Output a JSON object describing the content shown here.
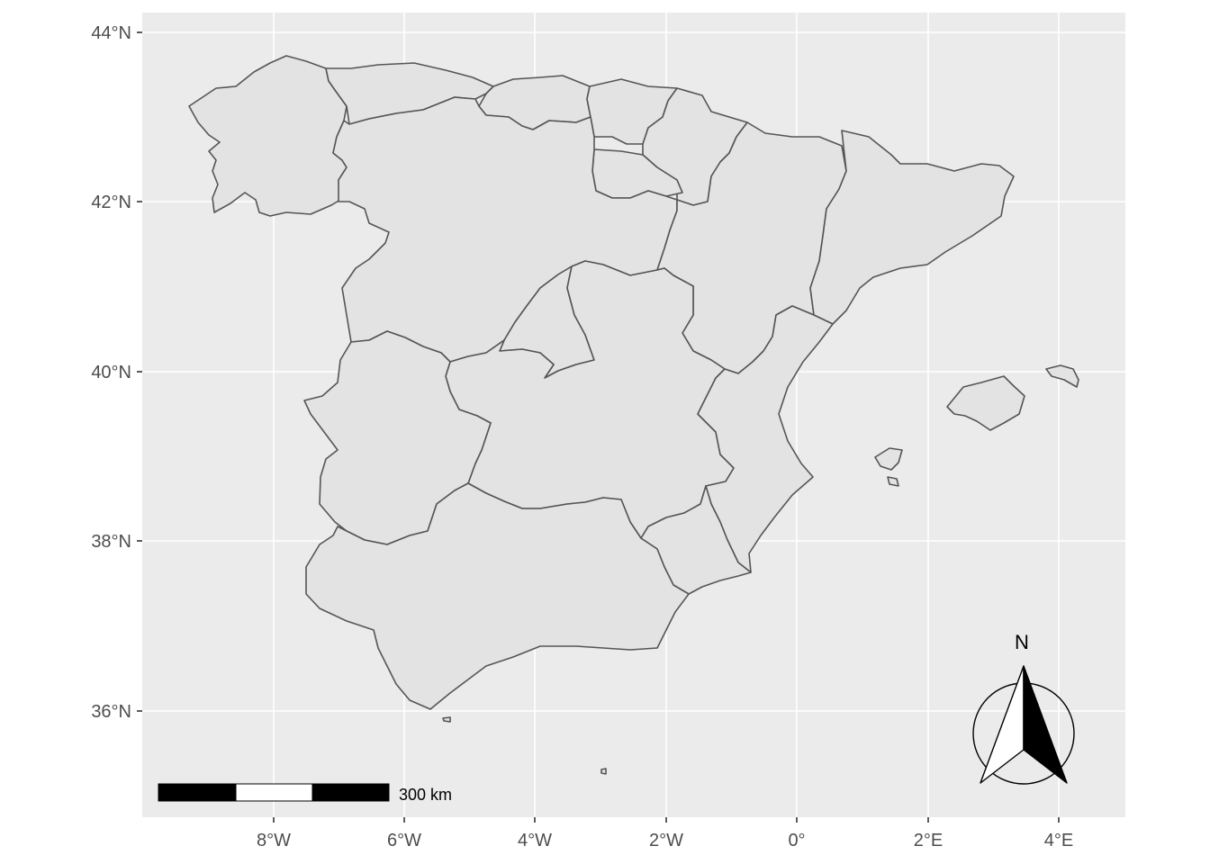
{
  "map": {
    "panel_background": "#ebebeb",
    "region_fill": "#e3e3e3",
    "region_stroke": "#555555",
    "grid_color": "#ffffff",
    "x_ticks": [
      "8°W",
      "6°W",
      "4°W",
      "2°W",
      "0°",
      "2°E",
      "4°E"
    ],
    "y_ticks": [
      "44°N",
      "42°N",
      "40°N",
      "38°N",
      "36°N"
    ],
    "scale_bar": {
      "label": "300 km"
    },
    "north_arrow": {
      "label": "N"
    }
  }
}
